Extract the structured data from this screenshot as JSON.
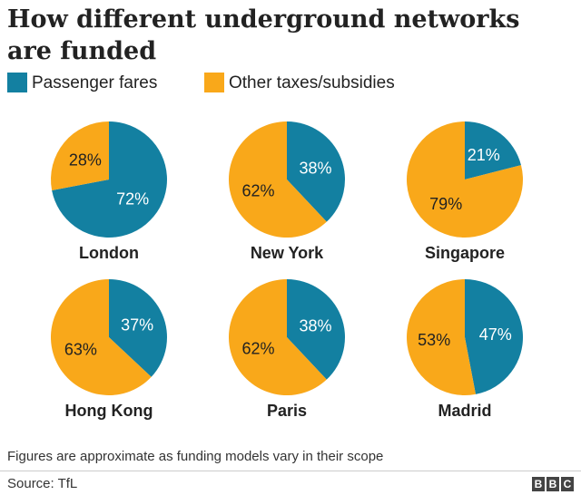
{
  "title_line1": "How different underground networks",
  "title_line2": "are funded",
  "legend": [
    {
      "label": "Passenger fares",
      "color": "#1380a1"
    },
    {
      "label": "Other taxes/subsidies",
      "color": "#f9a81a"
    }
  ],
  "chart_data": {
    "type": "pie",
    "title": "How different underground networks are funded",
    "series_names": [
      "Passenger fares",
      "Other taxes/subsidies"
    ],
    "colors": [
      "#1380a1",
      "#f9a81a"
    ],
    "legend_position": "top-left",
    "pies": [
      {
        "name": "London",
        "values": [
          72,
          28
        ],
        "labels": [
          "72%",
          "28%"
        ]
      },
      {
        "name": "New York",
        "values": [
          38,
          62
        ],
        "labels": [
          "38%",
          "62%"
        ]
      },
      {
        "name": "Singapore",
        "values": [
          21,
          79
        ],
        "labels": [
          "21%",
          "79%"
        ]
      },
      {
        "name": "Hong Kong",
        "values": [
          37,
          63
        ],
        "labels": [
          "37%",
          "63%"
        ]
      },
      {
        "name": "Paris",
        "values": [
          38,
          62
        ],
        "labels": [
          "38%",
          "62%"
        ]
      },
      {
        "name": "Madrid",
        "values": [
          47,
          53
        ],
        "labels": [
          "47%",
          "53%"
        ]
      }
    ]
  },
  "footnote": "Figures are approximate as funding models vary in their scope",
  "source": "Source: TfL",
  "logo_letters": [
    "B",
    "B",
    "C"
  ]
}
